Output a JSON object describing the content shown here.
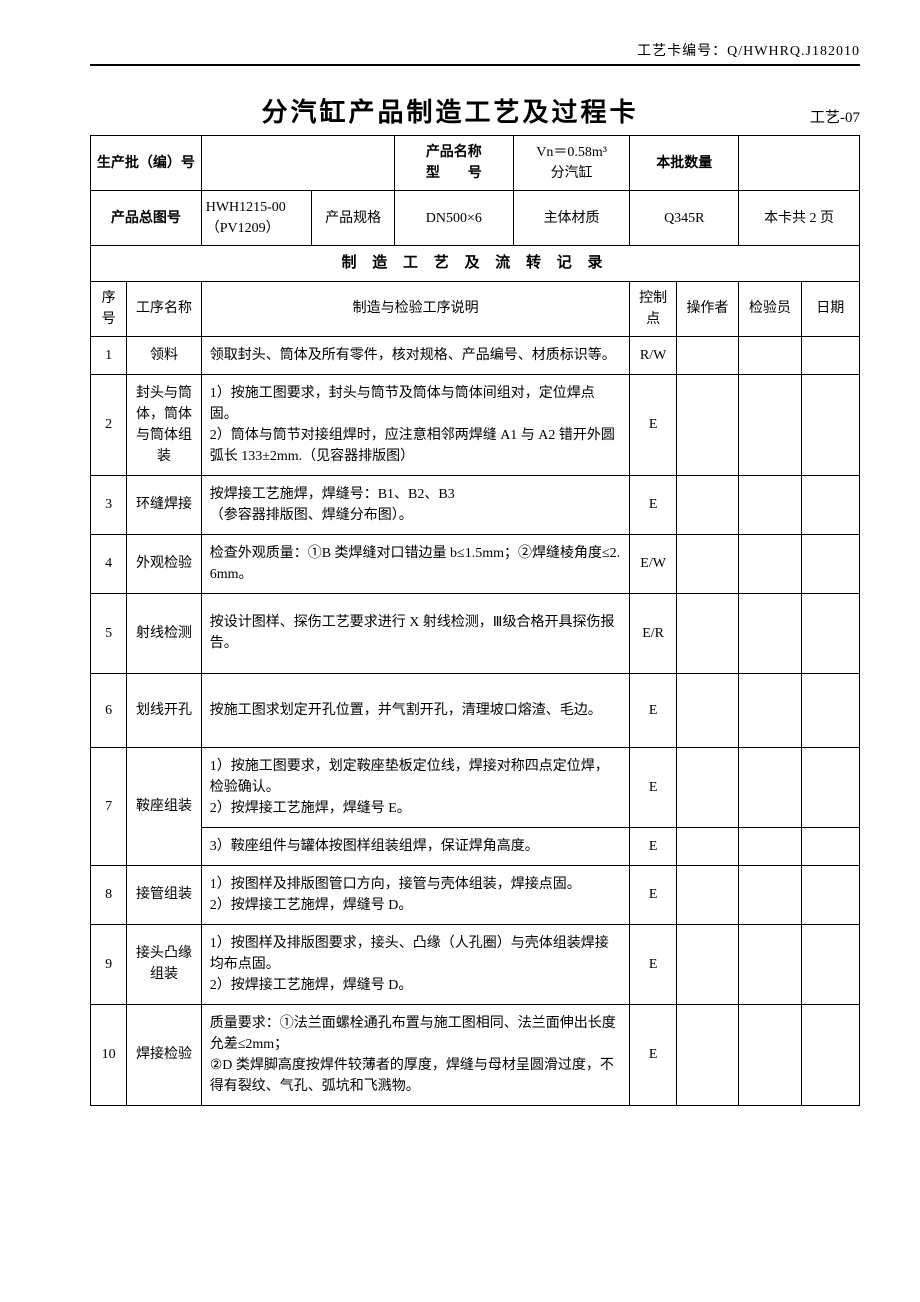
{
  "header": {
    "card_number_label": "工艺卡编号：",
    "card_number": "Q/HWHRQ.J182010"
  },
  "title": {
    "main": "分汽缸产品制造工艺及过程卡",
    "code": "工艺-07"
  },
  "meta": {
    "batch_label": "生产批（编）号",
    "product_name_label_l1": "产品名称",
    "product_name_label_l2": "型　　号",
    "product_name_l1": "Vn＝0.58m³",
    "product_name_l2": "分汽缸",
    "qty_label": "本批数量",
    "drawing_label": "产品总图号",
    "drawing_no_l1": "HWH1215-00",
    "drawing_no_l2": "（PV1209）",
    "spec_label": "产品规格",
    "spec_value": "DN500×6",
    "material_label": "主体材质",
    "material_value": "Q345R",
    "pages": "本卡共 2 页"
  },
  "section_title": "制 造 工 艺 及 流 转 记 录",
  "columns": {
    "seq": "序号",
    "name": "工序名称",
    "desc": "制造与检验工序说明",
    "ctrl": "控制点",
    "operator": "操作者",
    "inspector": "检验员",
    "date": "日期"
  },
  "rows": [
    {
      "seq": "1",
      "name": "领料",
      "desc": "领取封头、筒体及所有零件，核对规格、产品编号、材质标识等。",
      "ctrl": "R/W"
    },
    {
      "seq": "2",
      "name": "封头与筒体，筒体与筒体组装",
      "desc": "1）按施工图要求，封头与筒节及筒体与筒体间组对，定位焊点固。\n2）筒体与筒节对接组焊时，应注意相邻两焊缝 A1 与 A2 错开外圆弧长 133±2mm.（见容器排版图）",
      "ctrl": "E"
    },
    {
      "seq": "3",
      "name": "环缝焊接",
      "desc": "按焊接工艺施焊，焊缝号：B1、B2、B3\n（参容器排版图、焊缝分布图）。",
      "ctrl": "E"
    },
    {
      "seq": "4",
      "name": "外观检验",
      "desc": "检查外观质量：①B 类焊缝对口错边量 b≤1.5mm；②焊缝棱角度≤2.6mm。",
      "ctrl": "E/W"
    },
    {
      "seq": "5",
      "name": "射线检测",
      "desc": "按设计图样、探伤工艺要求进行 X 射线检测，Ⅲ级合格开具探伤报告。",
      "ctrl": "E/R"
    },
    {
      "seq": "6",
      "name": "划线开孔",
      "desc": "按施工图求划定开孔位置，并气割开孔，清理坡口熔渣、毛边。",
      "ctrl": "E"
    },
    {
      "seq": "7",
      "name": "鞍座组装",
      "desc_a": "1）按施工图要求，划定鞍座垫板定位线，焊接对称四点定位焊，检验确认。\n2）按焊接工艺施焊，焊缝号 E。",
      "ctrl_a": "E",
      "desc_b": "3）鞍座组件与罐体按图样组装组焊，保证焊角高度。",
      "ctrl_b": "E"
    },
    {
      "seq": "8",
      "name": "接管组装",
      "desc": "1）按图样及排版图管口方向，接管与壳体组装，焊接点固。\n2）按焊接工艺施焊，焊缝号 D。",
      "ctrl": "E"
    },
    {
      "seq": "9",
      "name": "接头凸缘组装",
      "desc": "1）按图样及排版图要求，接头、凸缘（人孔圈）与壳体组装焊接均布点固。\n2）按焊接工艺施焊，焊缝号 D。",
      "ctrl": "E"
    },
    {
      "seq": "10",
      "name": "焊接检验",
      "desc": "质量要求：①法兰面螺栓通孔布置与施工图相同、法兰面伸出长度允差≤2mm；\n②D 类焊脚高度按焊件较薄者的厚度，焊缝与母材呈圆滑过度，不得有裂纹、气孔、弧坑和飞溅物。",
      "ctrl": "E"
    }
  ]
}
